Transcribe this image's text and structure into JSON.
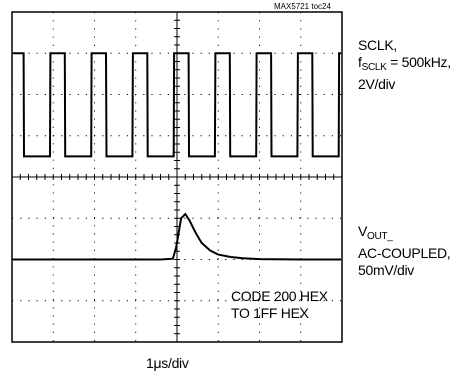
{
  "tag": "MAX5721 toc24",
  "sclk_label": {
    "line1": "SCLK,",
    "f": "f",
    "sub": "SCLK",
    "freq": " = 500kHz,",
    "scale": "2V/div"
  },
  "vout_label": {
    "v": "V",
    "sub": "OUT_",
    "line2": "AC-COUPLED,",
    "scale": "50mV/div"
  },
  "code_label": {
    "line1": "CODE 200 HEX",
    "line2": "TO 1FF HEX"
  },
  "time_label": {
    "pre": "1",
    "mu": "μ",
    "post": "s/div"
  },
  "chart_data": {
    "type": "line",
    "title": "",
    "grid": true,
    "x_divisions": 8,
    "y_divisions": 8,
    "time_per_div": "1μs/div",
    "series": [
      {
        "name": "SCLK",
        "scale": "2V/div",
        "frequency": "500kHz",
        "x_div": [
          0,
          0.28,
          0.29,
          0.92,
          0.93,
          1.28,
          1.29,
          1.92,
          1.93,
          2.28,
          2.29,
          2.92,
          2.93,
          3.28,
          3.29,
          3.92,
          3.93,
          4.28,
          4.29,
          4.92,
          4.93,
          5.28,
          5.29,
          5.92,
          5.93,
          6.28,
          6.29,
          6.92,
          6.93,
          7.28,
          7.29,
          7.92,
          7.93,
          8.0
        ],
        "y_div": [
          1.0,
          1.0,
          -1.5,
          -1.5,
          1.0,
          1.0,
          -1.5,
          -1.5,
          1.0,
          1.0,
          -1.5,
          -1.5,
          1.0,
          1.0,
          -1.5,
          -1.5,
          1.0,
          1.0,
          -1.5,
          -1.5,
          1.0,
          1.0,
          -1.5,
          -1.5,
          1.0,
          1.0,
          -1.5,
          -1.5,
          1.0,
          1.0,
          -1.5,
          -1.5,
          1.0,
          1.0
        ]
      },
      {
        "name": "VOUT",
        "scale": "50mV/div",
        "coupling": "AC-COUPLED",
        "x_div": [
          0,
          1.0,
          2.0,
          3.0,
          3.6,
          3.9,
          3.98,
          4.1,
          4.2,
          4.3,
          4.45,
          4.6,
          4.8,
          5.0,
          5.3,
          5.6,
          6.0,
          7.0,
          8.0
        ],
        "y_div": [
          0.0,
          0.0,
          0.0,
          0.0,
          0.0,
          0.02,
          0.3,
          1.0,
          1.1,
          0.95,
          0.65,
          0.4,
          0.22,
          0.12,
          0.06,
          0.03,
          0.01,
          0.0,
          0.0
        ]
      }
    ]
  }
}
